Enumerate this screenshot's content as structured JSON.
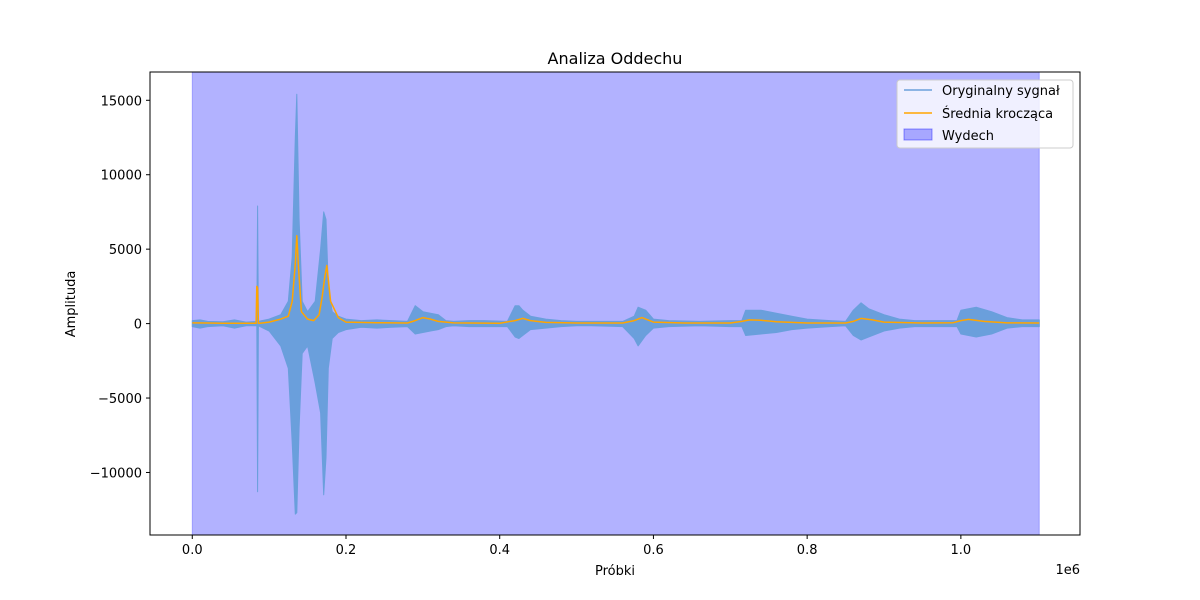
{
  "chart_data": {
    "type": "line",
    "title": "Analiza Oddechu",
    "xlabel": "Próbki",
    "ylabel": "Amplituda",
    "x_offset_label": "1e6",
    "xlim": [
      -55000,
      1155000
    ],
    "ylim": [
      -14200,
      16900
    ],
    "xticks": [
      0,
      200000,
      400000,
      600000,
      800000,
      1000000
    ],
    "xtick_labels": [
      "0.0",
      "0.2",
      "0.4",
      "0.6",
      "0.8",
      "1.0"
    ],
    "yticks": [
      -10000,
      -5000,
      0,
      5000,
      10000,
      15000
    ],
    "ytick_labels": [
      "−10000",
      "−5000",
      "0",
      "5000",
      "10000",
      "15000"
    ],
    "grid": false,
    "legend_position": "top-right",
    "series": [
      {
        "name": "Oryginalny sygnał",
        "kind": "envelope",
        "color": "#6a9fdc",
        "x": [
          0,
          10000,
          20000,
          40000,
          55000,
          70000,
          84000,
          85000,
          86000,
          100000,
          115000,
          125000,
          130000,
          134000,
          136000,
          139000,
          143000,
          150000,
          160000,
          167000,
          171000,
          174000,
          177000,
          182000,
          190000,
          200000,
          220000,
          240000,
          260000,
          280000,
          290000,
          300000,
          310000,
          320000,
          330000,
          340000,
          360000,
          380000,
          410000,
          420000,
          425000,
          430000,
          440000,
          460000,
          480000,
          500000,
          520000,
          560000,
          575000,
          580000,
          590000,
          600000,
          620000,
          660000,
          700000,
          715000,
          720000,
          740000,
          760000,
          780000,
          800000,
          830000,
          850000,
          860000,
          870000,
          880000,
          900000,
          920000,
          940000,
          980000,
          995000,
          1000000,
          1020000,
          1040000,
          1060000,
          1080000,
          1102000
        ],
        "upper": [
          200,
          250,
          150,
          120,
          250,
          100,
          150,
          7900,
          150,
          300,
          600,
          1500,
          4500,
          12500,
          15400,
          7000,
          1500,
          800,
          1500,
          5000,
          7500,
          7000,
          2500,
          800,
          500,
          300,
          200,
          250,
          200,
          150,
          1200,
          800,
          700,
          600,
          200,
          150,
          200,
          200,
          150,
          1200,
          1200,
          900,
          500,
          300,
          200,
          150,
          150,
          150,
          500,
          1100,
          900,
          300,
          200,
          150,
          200,
          200,
          900,
          900,
          700,
          500,
          300,
          200,
          150,
          900,
          1400,
          1000,
          600,
          300,
          200,
          200,
          200,
          900,
          1100,
          800,
          400,
          250,
          250
        ],
        "lower": [
          -200,
          -300,
          -200,
          -150,
          -300,
          -150,
          -150,
          -11300,
          -150,
          -500,
          -1500,
          -3000,
          -8000,
          -12800,
          -12700,
          -7000,
          -2000,
          -1500,
          -4000,
          -6000,
          -11500,
          -9000,
          -3000,
          -1000,
          -600,
          -400,
          -250,
          -300,
          -250,
          -200,
          -700,
          -600,
          -500,
          -400,
          -200,
          -150,
          -200,
          -200,
          -200,
          -900,
          -1000,
          -800,
          -400,
          -300,
          -200,
          -150,
          -150,
          -200,
          -1000,
          -1500,
          -800,
          -300,
          -200,
          -150,
          -200,
          -200,
          -800,
          -700,
          -600,
          -400,
          -300,
          -200,
          -150,
          -800,
          -1100,
          -900,
          -500,
          -300,
          -200,
          -200,
          -200,
          -700,
          -900,
          -700,
          -300,
          -200,
          -200
        ]
      },
      {
        "name": "Średnia krocząca",
        "kind": "line",
        "color": "#ffa500",
        "x": [
          0,
          20000,
          40000,
          60000,
          83000,
          84000,
          85000,
          86000,
          88000,
          100000,
          115000,
          125000,
          130000,
          134000,
          136000,
          138000,
          142000,
          150000,
          158000,
          165000,
          169000,
          172000,
          175000,
          180000,
          190000,
          200000,
          240000,
          280000,
          290000,
          300000,
          310000,
          320000,
          340000,
          400000,
          420000,
          430000,
          440000,
          460000,
          500000,
          560000,
          575000,
          585000,
          600000,
          640000,
          700000,
          715000,
          725000,
          740000,
          760000,
          800000,
          850000,
          860000,
          870000,
          885000,
          900000,
          950000,
          990000,
          1000000,
          1010000,
          1030000,
          1060000,
          1102000
        ],
        "y": [
          50,
          40,
          20,
          30,
          20,
          2500,
          2400,
          30,
          20,
          100,
          300,
          500,
          1500,
          4000,
          5900,
          4000,
          800,
          300,
          200,
          600,
          1800,
          3000,
          3900,
          1500,
          400,
          100,
          60,
          40,
          200,
          400,
          300,
          150,
          50,
          30,
          200,
          350,
          200,
          80,
          40,
          40,
          200,
          400,
          100,
          40,
          40,
          150,
          250,
          220,
          120,
          40,
          40,
          150,
          350,
          250,
          100,
          40,
          60,
          200,
          280,
          150,
          50,
          40
        ]
      }
    ],
    "regions": [
      {
        "name": "Wydech",
        "x_start": 0,
        "x_end": 1102000,
        "color": "#0000ff",
        "opacity": 0.3
      }
    ]
  }
}
